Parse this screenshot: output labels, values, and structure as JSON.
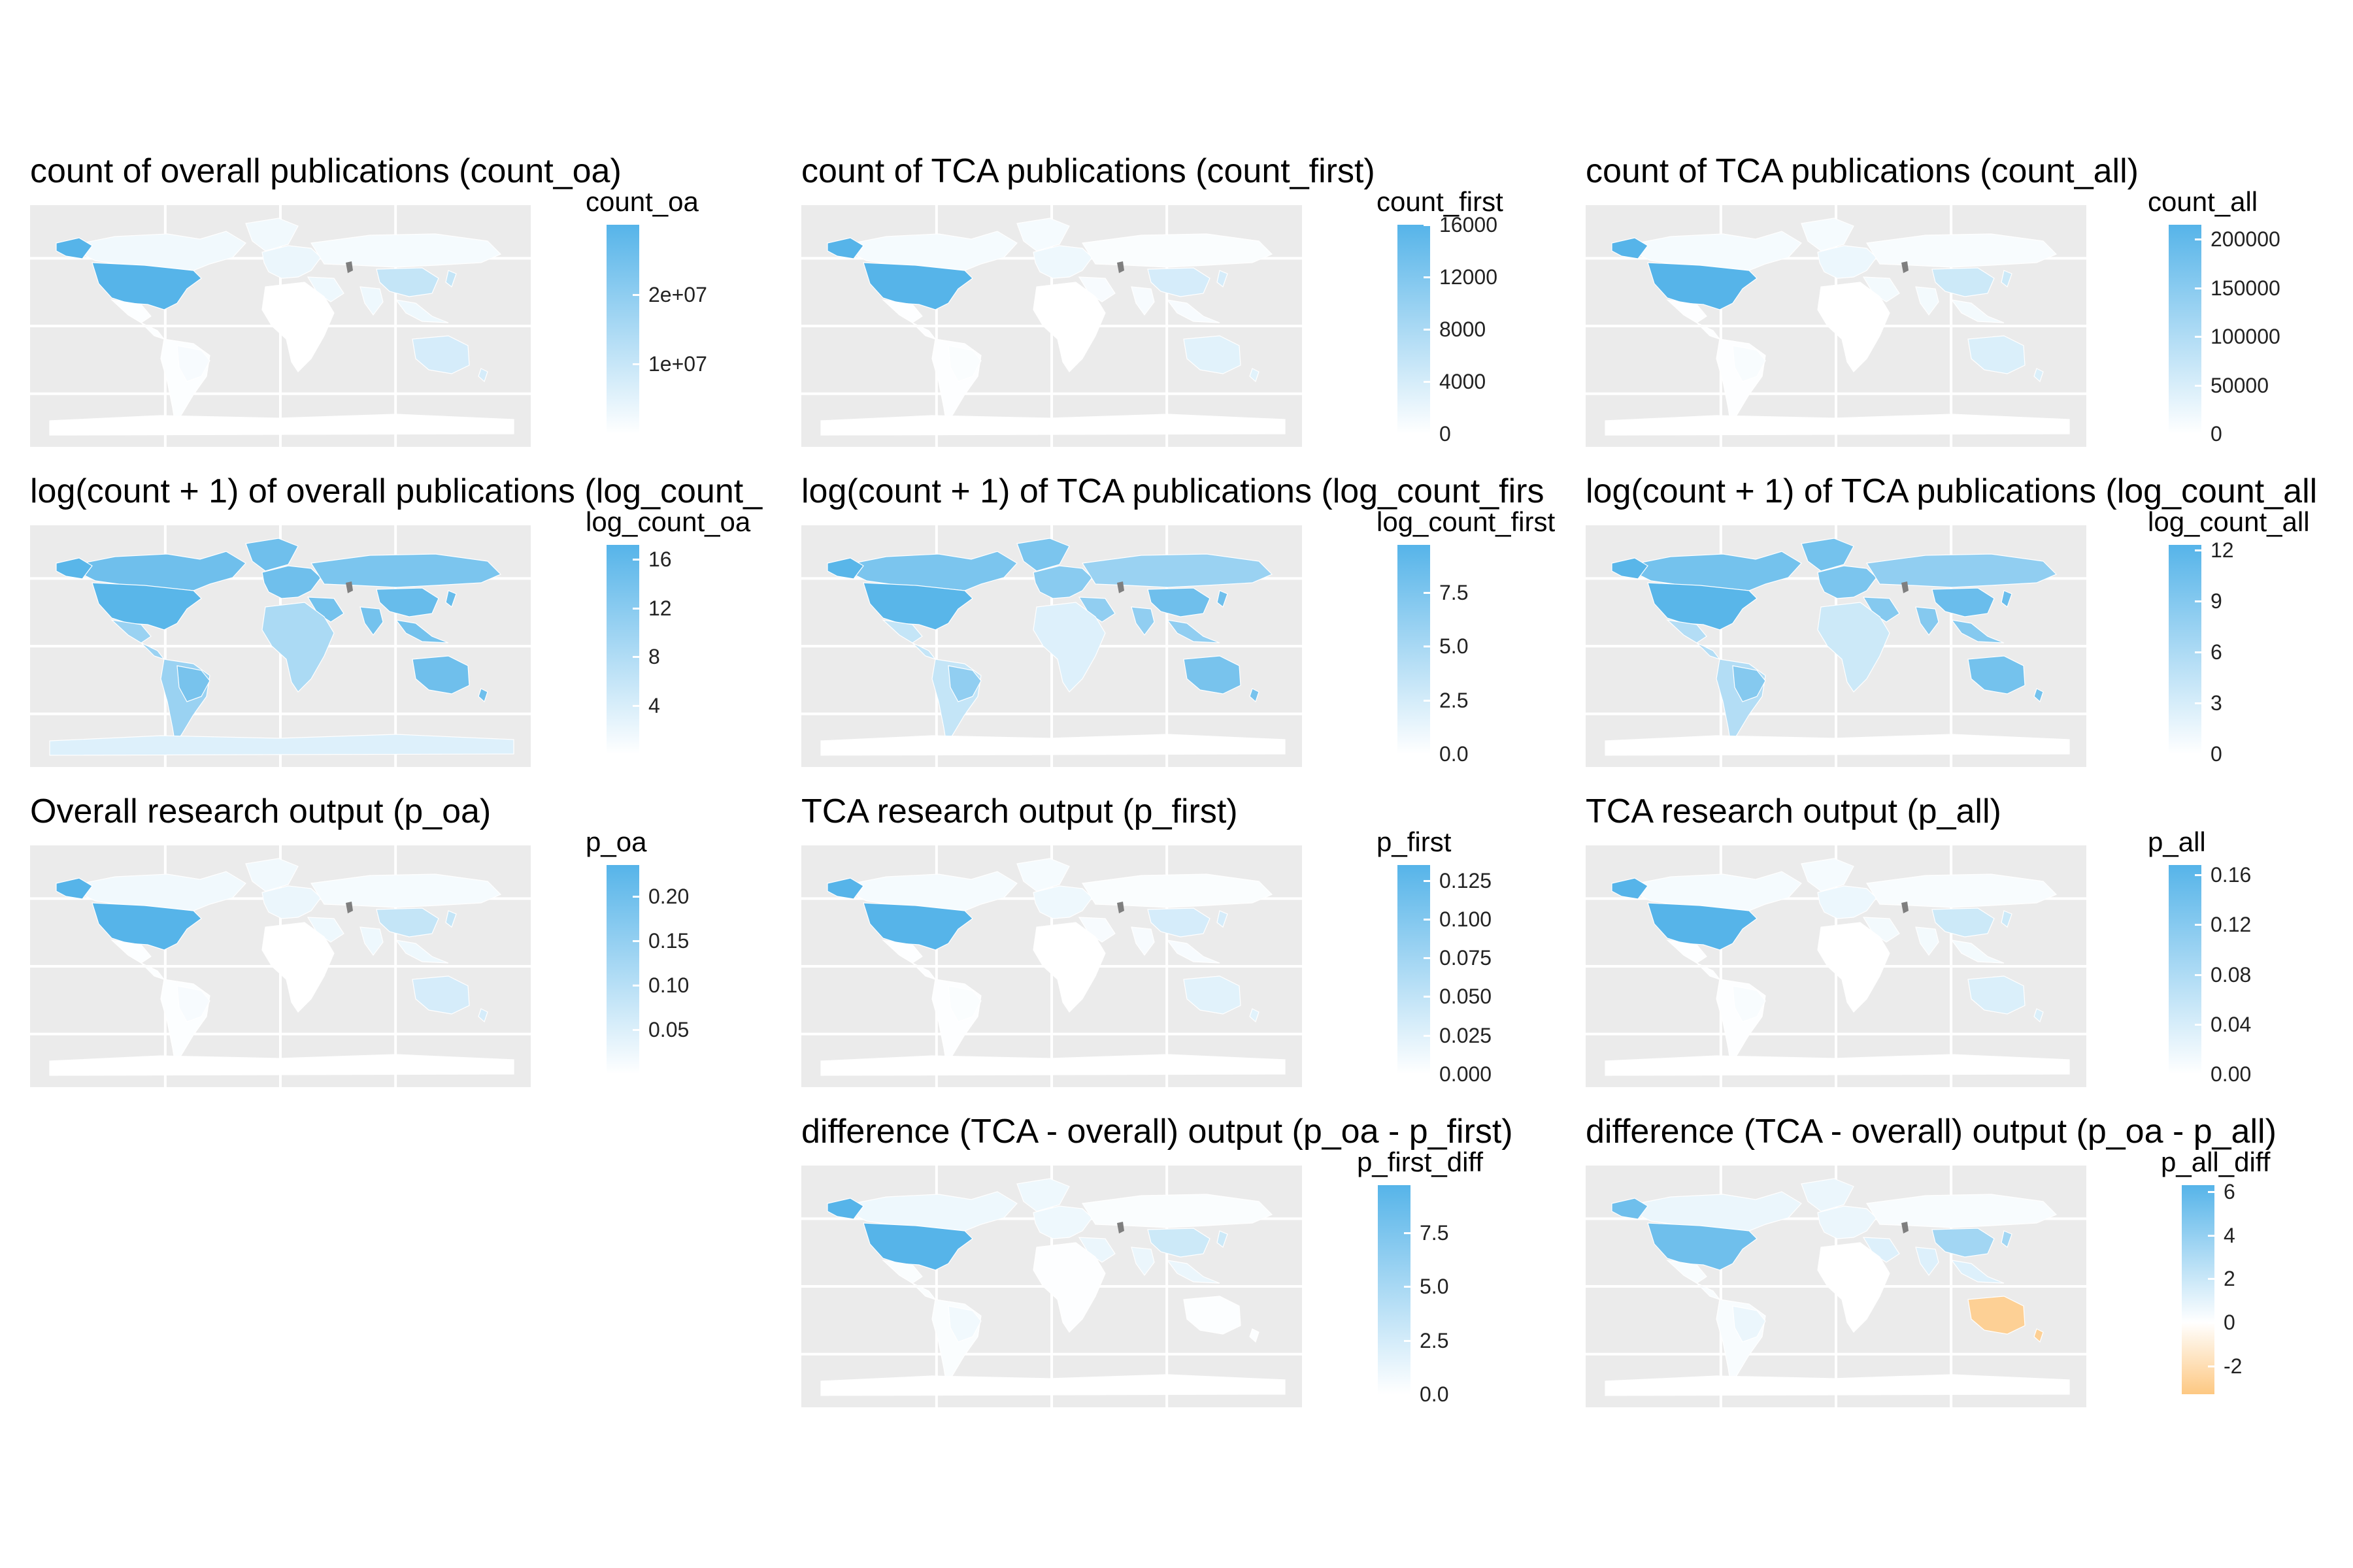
{
  "colors": {
    "low": "#ffffff",
    "high": "#56b4e9",
    "negative": "#fdc882",
    "missing": "#7f7f7f",
    "panel_background": "#ebebeb",
    "grid": "#ffffff"
  },
  "panels": [
    {
      "id": "count_oa",
      "title": "count of overall publications (count_oa)",
      "legend": {
        "title": "count_oa",
        "ticks": [
          "2e+07",
          "1e+07"
        ],
        "tick_values": [
          20000000.0,
          10000000.0
        ],
        "min": 0,
        "max": 30000000.0
      },
      "intensity": {
        "usa": 1.0,
        "canada": 0.08,
        "brazil": 0.05,
        "south_america": 0.02,
        "europe": 0.12,
        "russia": 0.06,
        "china": 0.35,
        "india": 0.1,
        "africa": 0.0,
        "australia": 0.25,
        "antarctica": 0.0
      }
    },
    {
      "id": "count_first",
      "title": "count of TCA publications (count_first)",
      "legend": {
        "title": "count_first",
        "ticks": [
          "16000",
          "12000",
          "8000",
          "4000",
          "0"
        ],
        "tick_values": [
          16000,
          12000,
          8000,
          4000,
          0
        ],
        "min": 0,
        "max": 16000
      },
      "intensity": {
        "usa": 1.0,
        "canada": 0.06,
        "brazil": 0.03,
        "south_america": 0.01,
        "europe": 0.1,
        "russia": 0.03,
        "china": 0.25,
        "india": 0.05,
        "africa": 0.0,
        "australia": 0.18,
        "antarctica": 0.0
      }
    },
    {
      "id": "count_all",
      "title": "count of TCA publications (count_all)",
      "legend": {
        "title": "count_all",
        "ticks": [
          "200000",
          "150000",
          "100000",
          "50000",
          "0"
        ],
        "tick_values": [
          200000,
          150000,
          100000,
          50000,
          0
        ],
        "min": 0,
        "max": 215000
      },
      "intensity": {
        "usa": 1.0,
        "canada": 0.06,
        "brazil": 0.04,
        "south_america": 0.01,
        "europe": 0.11,
        "russia": 0.04,
        "china": 0.3,
        "india": 0.07,
        "africa": 0.0,
        "australia": 0.22,
        "antarctica": 0.0
      }
    },
    {
      "id": "log_count_oa",
      "title": "log(count + 1) of overall publications (log_count_",
      "legend": {
        "title": "log_count_oa",
        "ticks": [
          "16",
          "12",
          "8",
          "4"
        ],
        "tick_values": [
          16,
          12,
          8,
          4
        ],
        "min": 0,
        "max": 17.2
      },
      "intensity": {
        "usa": 0.98,
        "canada": 0.85,
        "brazil": 0.8,
        "south_america": 0.6,
        "europe": 0.85,
        "russia": 0.78,
        "china": 0.9,
        "india": 0.82,
        "africa": 0.5,
        "australia": 0.85,
        "antarctica": 0.2
      }
    },
    {
      "id": "log_count_first",
      "title": "log(count + 1) of TCA publications (log_count_firs",
      "legend": {
        "title": "log_count_first",
        "ticks": [
          "7.5",
          "5.0",
          "2.5",
          "0.0"
        ],
        "tick_values": [
          7.5,
          5.0,
          2.5,
          0.0
        ],
        "min": 0,
        "max": 9.7
      },
      "intensity": {
        "usa": 0.98,
        "canada": 0.78,
        "brazil": 0.65,
        "south_america": 0.35,
        "europe": 0.7,
        "russia": 0.6,
        "china": 0.85,
        "india": 0.65,
        "africa": 0.2,
        "australia": 0.8,
        "antarctica": 0.0
      }
    },
    {
      "id": "log_count_all",
      "title": "log(count + 1) of TCA publications (log_count_all",
      "legend": {
        "title": "log_count_all",
        "ticks": [
          "12",
          "9",
          "6",
          "3",
          "0"
        ],
        "tick_values": [
          12,
          9,
          6,
          3,
          0
        ],
        "min": 0,
        "max": 12.3
      },
      "intensity": {
        "usa": 0.98,
        "canada": 0.82,
        "brazil": 0.72,
        "south_america": 0.45,
        "europe": 0.78,
        "russia": 0.65,
        "china": 0.88,
        "india": 0.72,
        "africa": 0.3,
        "australia": 0.82,
        "antarctica": 0.0
      }
    },
    {
      "id": "p_oa",
      "title": "Overall research output (p_oa)",
      "legend": {
        "title": "p_oa",
        "ticks": [
          "0.20",
          "0.15",
          "0.10",
          "0.05"
        ],
        "tick_values": [
          0.2,
          0.15,
          0.1,
          0.05
        ],
        "min": 0,
        "max": 0.235
      },
      "intensity": {
        "usa": 1.0,
        "canada": 0.08,
        "brazil": 0.05,
        "south_america": 0.02,
        "europe": 0.12,
        "russia": 0.06,
        "china": 0.35,
        "india": 0.1,
        "africa": 0.0,
        "australia": 0.25,
        "antarctica": 0.0
      }
    },
    {
      "id": "p_first",
      "title": "TCA research output (p_first)",
      "legend": {
        "title": "p_first",
        "ticks": [
          "0.125",
          "0.100",
          "0.075",
          "0.050",
          "0.025",
          "0.000"
        ],
        "tick_values": [
          0.125,
          0.1,
          0.075,
          0.05,
          0.025,
          0.0
        ],
        "min": 0,
        "max": 0.135
      },
      "intensity": {
        "usa": 1.0,
        "canada": 0.06,
        "brazil": 0.03,
        "south_america": 0.01,
        "europe": 0.1,
        "russia": 0.03,
        "china": 0.25,
        "india": 0.05,
        "africa": 0.0,
        "australia": 0.18,
        "antarctica": 0.0
      }
    },
    {
      "id": "p_all",
      "title": "TCA research output (p_all)",
      "legend": {
        "title": "p_all",
        "ticks": [
          "0.16",
          "0.12",
          "0.08",
          "0.04",
          "0.00"
        ],
        "tick_values": [
          0.16,
          0.12,
          0.08,
          0.04,
          0.0
        ],
        "min": 0,
        "max": 0.168
      },
      "intensity": {
        "usa": 1.0,
        "canada": 0.06,
        "brazil": 0.04,
        "south_america": 0.01,
        "europe": 0.11,
        "russia": 0.04,
        "china": 0.3,
        "india": 0.07,
        "africa": 0.0,
        "australia": 0.22,
        "antarctica": 0.0
      }
    },
    {
      "id": "p_first_diff",
      "title": "difference (TCA - overall) output (p_oa - p_first)",
      "legend": {
        "title": "p_first_diff",
        "ticks": [
          "7.5",
          "5.0",
          "2.5",
          "0.0"
        ],
        "tick_values": [
          7.5,
          5.0,
          2.5,
          0.0
        ],
        "min": 0,
        "max": 9.7
      },
      "intensity": {
        "usa": 1.0,
        "canada": 0.1,
        "brazil": 0.08,
        "south_america": 0.03,
        "europe": 0.1,
        "russia": 0.03,
        "china": 0.3,
        "india": 0.12,
        "africa": 0.01,
        "australia": 0.02,
        "antarctica": 0.0
      }
    },
    {
      "id": "p_all_diff",
      "title": "difference (TCA - overall) output (p_oa - p_all)",
      "legend": {
        "title": "p_all_diff",
        "ticks": [
          "6",
          "4",
          "2",
          "0",
          "-2"
        ],
        "tick_values": [
          6,
          4,
          2,
          0,
          -2
        ],
        "min": -3.3,
        "max": 6.3,
        "diverging": true
      },
      "intensity": {
        "usa": 0.85,
        "canada": 0.12,
        "brazil": 0.12,
        "south_america": 0.04,
        "europe": 0.12,
        "russia": 0.04,
        "china": 0.55,
        "india": 0.2,
        "africa": 0.0,
        "australia": -0.85,
        "antarctica": 0.0
      }
    }
  ]
}
